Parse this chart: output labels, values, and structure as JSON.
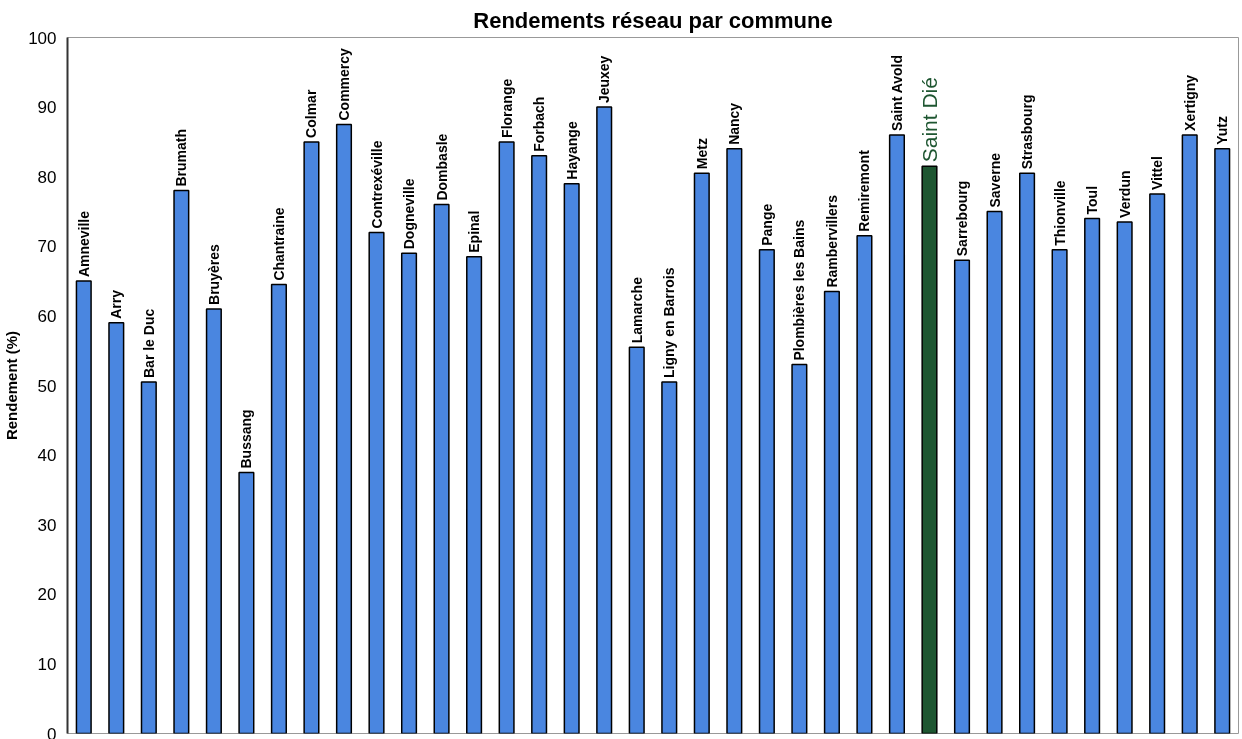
{
  "chart_data": {
    "type": "bar",
    "title": "Rendements réseau par commune",
    "ylabel": "Rendement (%)",
    "categories": [
      "Amneville",
      "Arry",
      "Bar le Duc",
      "Brumath",
      "Bruyères",
      "Bussang",
      "Chantraine",
      "Colmar",
      "Commercy",
      "Contrexéville",
      "Dogneville",
      "Dombasle",
      "Epinal",
      "Florange",
      "Forbach",
      "Hayange",
      "Jeuxey",
      "Lamarche",
      "Ligny en Barrois",
      "Metz",
      "Nancy",
      "Pange",
      "Plombières les Bains",
      "Rambervillers",
      "Remiremont",
      "Saint Avold",
      "Saint Dié",
      "Sarrebourg",
      "Saverne",
      "Strasbourg",
      "Thionville",
      "Toul",
      "Verdun",
      "Vittel",
      "Xertigny",
      "Yutz"
    ],
    "values": [
      65,
      59,
      50.5,
      78,
      61,
      37.5,
      64.5,
      85,
      87.5,
      72,
      69,
      76,
      68.5,
      85,
      83,
      79,
      90,
      55.5,
      50.5,
      80.5,
      84,
      69.5,
      53,
      63.5,
      71.5,
      86,
      81.5,
      68,
      75,
      80.5,
      69.5,
      74,
      73.5,
      77.5,
      86,
      84
    ],
    "colors": [
      "#4a86e0",
      "#4a86e0",
      "#4a86e0",
      "#4a86e0",
      "#4a86e0",
      "#4a86e0",
      "#4a86e0",
      "#4a86e0",
      "#4a86e0",
      "#4a86e0",
      "#4a86e0",
      "#4a86e0",
      "#4a86e0",
      "#4a86e0",
      "#4a86e0",
      "#4a86e0",
      "#4a86e0",
      "#4a86e0",
      "#4a86e0",
      "#4a86e0",
      "#4a86e0",
      "#4a86e0",
      "#4a86e0",
      "#4a86e0",
      "#4a86e0",
      "#4a86e0",
      "#1e5631",
      "#4a86e0",
      "#4a86e0",
      "#4a86e0",
      "#4a86e0",
      "#4a86e0",
      "#4a86e0",
      "#4a86e0",
      "#4a86e0",
      "#4a86e0"
    ],
    "ylim": [
      0,
      100
    ],
    "yticks": [
      0,
      10,
      20,
      30,
      40,
      50,
      60,
      70,
      80,
      90,
      100
    ],
    "grid": false
  }
}
